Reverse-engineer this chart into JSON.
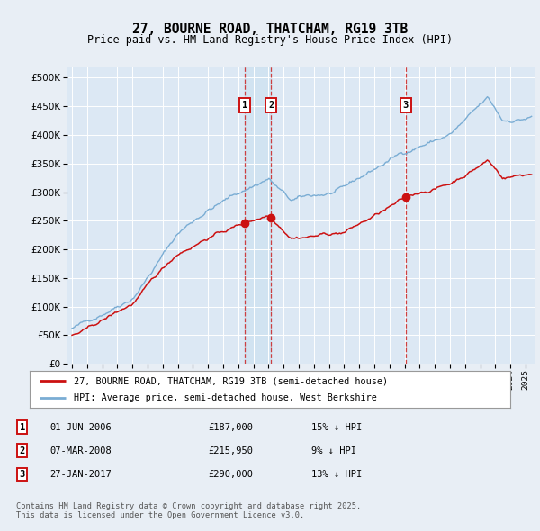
{
  "title": "27, BOURNE ROAD, THATCHAM, RG19 3TB",
  "subtitle": "Price paid vs. HM Land Registry's House Price Index (HPI)",
  "background_color": "#e8eef5",
  "plot_bg_color": "#dce8f4",
  "legend_line1": "27, BOURNE ROAD, THATCHAM, RG19 3TB (semi-detached house)",
  "legend_line2": "HPI: Average price, semi-detached house, West Berkshire",
  "footer": "Contains HM Land Registry data © Crown copyright and database right 2025.\nThis data is licensed under the Open Government Licence v3.0.",
  "transactions": [
    {
      "label": "1",
      "date_num": 2006.42,
      "price": 187000
    },
    {
      "label": "2",
      "date_num": 2008.18,
      "price": 215950
    },
    {
      "label": "3",
      "date_num": 2017.07,
      "price": 290000
    }
  ],
  "transaction_dates_text": [
    "01-JUN-2006",
    "07-MAR-2008",
    "27-JAN-2017"
  ],
  "transaction_prices_text": [
    "£187,000",
    "£215,950",
    "£290,000"
  ],
  "transaction_notes_text": [
    "15% ↓ HPI",
    "9% ↓ HPI",
    "13% ↓ HPI"
  ],
  "hpi_color": "#7aadd4",
  "price_color": "#cc1111",
  "vline_color": "#cc2222",
  "label_box_color": "#cc1111",
  "dot_color": "#cc1111",
  "ylim": [
    0,
    520000
  ],
  "ytick_step": 50000,
  "xlim_start": 1994.7,
  "xlim_end": 2025.6
}
